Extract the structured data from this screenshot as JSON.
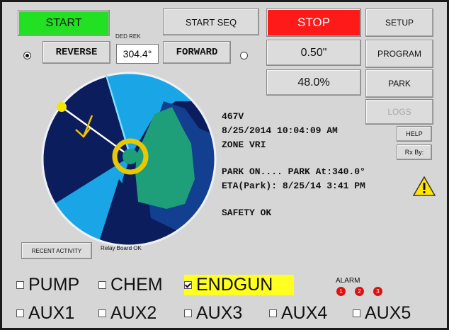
{
  "buttons": {
    "start": "START",
    "start_seq": "START SEQ",
    "stop": "STOP",
    "setup": "SETUP",
    "reverse": "REVERSE",
    "forward": "FORWARD",
    "program": "PROGRAM",
    "park": "PARK",
    "logs": "LOGS",
    "help": "HELP",
    "rx_by": "Rx By:",
    "recent_activity": "RECENT ACTIVITY"
  },
  "ded_rek_label": "DED REK",
  "position": "304.4°",
  "depth": "0.50\"",
  "speed": "48.0%",
  "status": [
    "467V",
    "8/25/2014 10:04:09 AM",
    "ZONE VRI",
    "PARK ON.... PARK At:340.0°",
    "ETA(Park): 8/25/14 3:41 PM",
    "SAFETY OK"
  ],
  "relay_status": "Relay Board OK",
  "outputs": [
    {
      "label": "PUMP",
      "checked": false
    },
    {
      "label": "CHEM",
      "checked": false
    },
    {
      "label": "ENDGUN",
      "checked": true
    }
  ],
  "aux": [
    "AUX1",
    "AUX2",
    "AUX3",
    "AUX4",
    "AUX5"
  ],
  "alarm": {
    "title": "ALARM",
    "indicators": [
      "1",
      "2",
      "3"
    ]
  }
}
